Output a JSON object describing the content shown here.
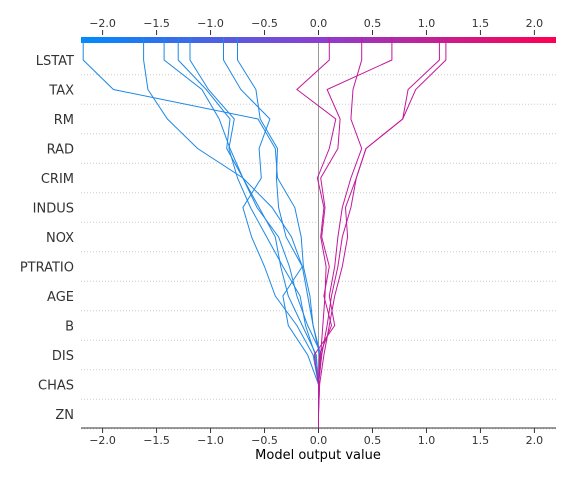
{
  "chart_data": {
    "type": "line",
    "title": "",
    "xlabel": "Model output value",
    "ylabel": "",
    "xlim": [
      -2.2,
      2.2
    ],
    "x_ticks": [
      -2.0,
      -1.5,
      -1.0,
      -0.5,
      0.0,
      0.5,
      1.0,
      1.5,
      2.0
    ],
    "x_tick_labels": [
      "−2.0",
      "−1.5",
      "−1.0",
      "−0.5",
      "0.0",
      "0.5",
      "1.0",
      "1.5",
      "2.0"
    ],
    "base_value": 0.0,
    "features": [
      "LSTAT",
      "TAX",
      "RM",
      "RAD",
      "CRIM",
      "INDUS",
      "NOX",
      "PTRATIO",
      "AGE",
      "B",
      "DIS",
      "CHAS",
      "ZN"
    ],
    "grid": true,
    "colormap": {
      "low": "#008bfb",
      "mid": "#8b3fd0",
      "high": "#ff0052"
    },
    "low_color": "#1e88e5",
    "high_color": "#c2189a",
    "series": [
      {
        "values": [
          0.0,
          0.0,
          0.01,
          -0.05,
          -0.08,
          -0.14,
          -0.16,
          -0.22,
          -0.38,
          -0.4,
          -0.56,
          -1.9,
          -2.18
        ]
      },
      {
        "values": [
          0.0,
          0.0,
          0.02,
          -0.05,
          -0.1,
          -0.15,
          -0.25,
          -0.43,
          -0.7,
          -1.12,
          -1.4,
          -1.58,
          -1.62
        ]
      },
      {
        "values": [
          0.0,
          0.0,
          0.03,
          -0.1,
          -0.2,
          -0.27,
          -0.37,
          -0.57,
          -0.7,
          -0.82,
          -0.92,
          -1.08,
          -1.43
        ]
      },
      {
        "values": [
          0.0,
          0.0,
          -0.02,
          -0.15,
          -0.28,
          -0.35,
          -0.4,
          -0.55,
          -0.7,
          -0.85,
          -0.82,
          -1.04,
          -1.3
        ]
      },
      {
        "values": [
          0.0,
          0.01,
          -0.03,
          -0.12,
          -0.17,
          -0.33,
          -0.48,
          -0.63,
          -0.75,
          -0.83,
          -0.78,
          -1.02,
          -1.19
        ]
      },
      {
        "values": [
          0.0,
          0.0,
          -0.05,
          -0.2,
          -0.4,
          -0.5,
          -0.62,
          -0.7,
          -0.53,
          -0.55,
          -0.45,
          -0.72,
          -0.88
        ]
      },
      {
        "values": [
          0.0,
          0.0,
          -0.1,
          -0.28,
          -0.33,
          -0.15,
          -0.3,
          -0.37,
          -0.39,
          -0.38,
          -0.54,
          -0.58,
          -0.75
        ]
      },
      {
        "values": [
          0.0,
          0.0,
          0.02,
          0.04,
          0.06,
          0.07,
          0.02,
          0.05,
          -0.01,
          0.1,
          0.16,
          -0.2,
          0.1
        ]
      },
      {
        "values": [
          0.0,
          0.0,
          0.01,
          0.12,
          0.05,
          0.1,
          0.03,
          0.06,
          0.02,
          0.18,
          0.2,
          0.08,
          0.68
        ]
      },
      {
        "values": [
          0.0,
          0.0,
          -0.04,
          0.15,
          0.1,
          0.15,
          0.18,
          0.22,
          0.3,
          0.4,
          0.3,
          0.32,
          0.4
        ]
      },
      {
        "values": [
          0.0,
          0.0,
          0.03,
          0.08,
          0.12,
          0.18,
          0.22,
          0.3,
          0.35,
          0.44,
          0.78,
          0.83,
          1.12
        ]
      },
      {
        "values": [
          0.0,
          0.01,
          0.05,
          0.1,
          0.15,
          0.22,
          0.27,
          0.25,
          0.35,
          0.44,
          0.78,
          0.9,
          1.18
        ]
      }
    ]
  }
}
